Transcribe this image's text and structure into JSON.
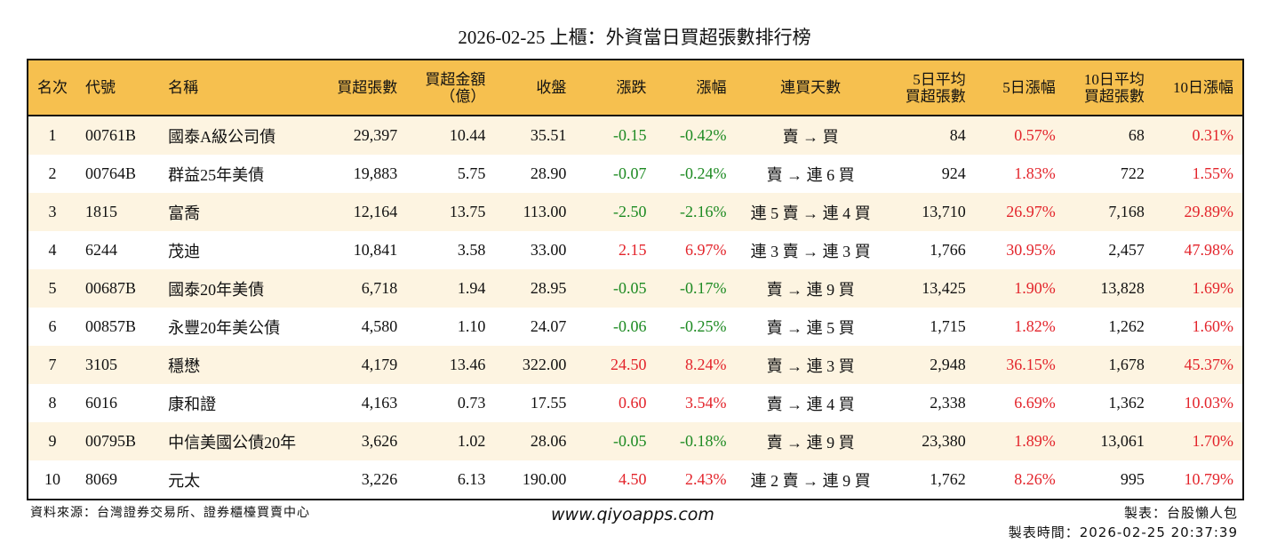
{
  "title": "2026-02-25 上櫃：外資當日買超張數排行榜",
  "colors": {
    "header_bg": "#f6c04f",
    "odd_row_bg": "#fdf4e1",
    "up": "#e3242b",
    "down": "#1d8a22"
  },
  "headers": [
    "名次",
    "代號",
    "名稱",
    "買超張數",
    "買超金額\n（億）",
    "收盤",
    "漲跌",
    "漲幅",
    "連買天數",
    "5日平均\n買超張數",
    "5日漲幅",
    "10日平均\n買超張數",
    "10日漲幅"
  ],
  "rows": [
    [
      "1",
      "00761B",
      "國泰A級公司債",
      "29,397",
      "10.44",
      "35.51",
      "-0.15",
      "-0.42%",
      "賣 → 買",
      "84",
      "0.57%",
      "68",
      "0.31%"
    ],
    [
      "2",
      "00764B",
      "群益25年美債",
      "19,883",
      "5.75",
      "28.90",
      "-0.07",
      "-0.24%",
      "賣 → 連 6 買",
      "924",
      "1.83%",
      "722",
      "1.55%"
    ],
    [
      "3",
      "1815",
      "富喬",
      "12,164",
      "13.75",
      "113.00",
      "-2.50",
      "-2.16%",
      "連 5 賣 → 連 4 買",
      "13,710",
      "26.97%",
      "7,168",
      "29.89%"
    ],
    [
      "4",
      "6244",
      "茂迪",
      "10,841",
      "3.58",
      "33.00",
      "2.15",
      "6.97%",
      "連 3 賣 → 連 3 買",
      "1,766",
      "30.95%",
      "2,457",
      "47.98%"
    ],
    [
      "5",
      "00687B",
      "國泰20年美債",
      "6,718",
      "1.94",
      "28.95",
      "-0.05",
      "-0.17%",
      "賣 → 連 9 買",
      "13,425",
      "1.90%",
      "13,828",
      "1.69%"
    ],
    [
      "6",
      "00857B",
      "永豐20年美公債",
      "4,580",
      "1.10",
      "24.07",
      "-0.06",
      "-0.25%",
      "賣 → 連 5 買",
      "1,715",
      "1.82%",
      "1,262",
      "1.60%"
    ],
    [
      "7",
      "3105",
      "穩懋",
      "4,179",
      "13.46",
      "322.00",
      "24.50",
      "8.24%",
      "賣 → 連 3 買",
      "2,948",
      "36.15%",
      "1,678",
      "45.37%"
    ],
    [
      "8",
      "6016",
      "康和證",
      "4,163",
      "0.73",
      "17.55",
      "0.60",
      "3.54%",
      "賣 → 連 4 買",
      "2,338",
      "6.69%",
      "1,362",
      "10.03%"
    ],
    [
      "9",
      "00795B",
      "中信美國公債20年",
      "3,626",
      "1.02",
      "28.06",
      "-0.05",
      "-0.18%",
      "賣 → 連 9 買",
      "23,380",
      "1.89%",
      "13,061",
      "1.70%"
    ],
    [
      "10",
      "8069",
      "元太",
      "3,226",
      "6.13",
      "190.00",
      "4.50",
      "2.43%",
      "連 2 賣 → 連 9 買",
      "1,762",
      "8.26%",
      "995",
      "10.79%"
    ]
  ],
  "footer": {
    "source": "資料來源：台灣證券交易所、證券櫃檯買賣中心",
    "site": "www.qiyoapps.com",
    "maker": "製表：台股懶人包",
    "made_time": "製表時間：2026-02-25 20:37:39"
  }
}
